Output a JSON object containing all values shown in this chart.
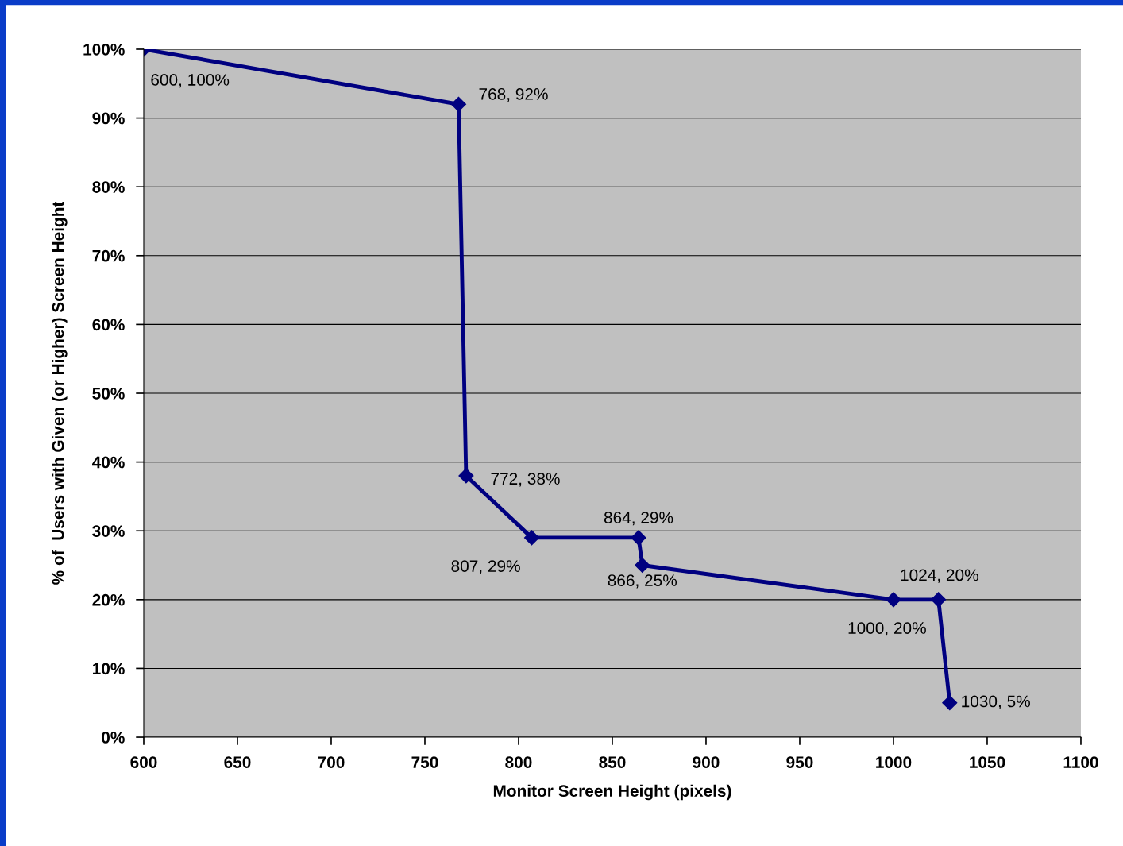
{
  "chart_data": {
    "type": "line",
    "xlabel": "Monitor Screen Height (pixels)",
    "ylabel": "% of  Users with Given (or Higher) Screen Height",
    "x": [
      600,
      768,
      772,
      807,
      864,
      866,
      1000,
      1024,
      1030
    ],
    "series": [
      {
        "color": "#000080",
        "values": [
          100,
          92,
          38,
          29,
          29,
          25,
          20,
          20,
          5
        ],
        "value_labels": [
          "600, 100%",
          "768, 92%",
          "772, 38%",
          "807, 29%",
          "864, 29%",
          "866, 25%",
          "1000, 20%",
          "1024, 20%",
          "1030, 5%"
        ]
      }
    ],
    "xlim": [
      600,
      1100
    ],
    "xticks": [
      600,
      650,
      700,
      750,
      800,
      850,
      900,
      950,
      1000,
      1050,
      1100
    ],
    "ylim": [
      0,
      100
    ],
    "yticks": [
      {
        "value": 0,
        "label": "0%"
      },
      {
        "value": 10,
        "label": "10%"
      },
      {
        "value": 20,
        "label": "20%"
      },
      {
        "value": 30,
        "label": "30%"
      },
      {
        "value": 40,
        "label": "40%"
      },
      {
        "value": 50,
        "label": "50%"
      },
      {
        "value": 60,
        "label": "60%"
      },
      {
        "value": 70,
        "label": "70%"
      },
      {
        "value": 80,
        "label": "80%"
      },
      {
        "value": 90,
        "label": "90%"
      },
      {
        "value": 100,
        "label": "100%"
      }
    ],
    "grid": "y",
    "marker": "diamond",
    "line_style": "solid",
    "legend": false
  }
}
